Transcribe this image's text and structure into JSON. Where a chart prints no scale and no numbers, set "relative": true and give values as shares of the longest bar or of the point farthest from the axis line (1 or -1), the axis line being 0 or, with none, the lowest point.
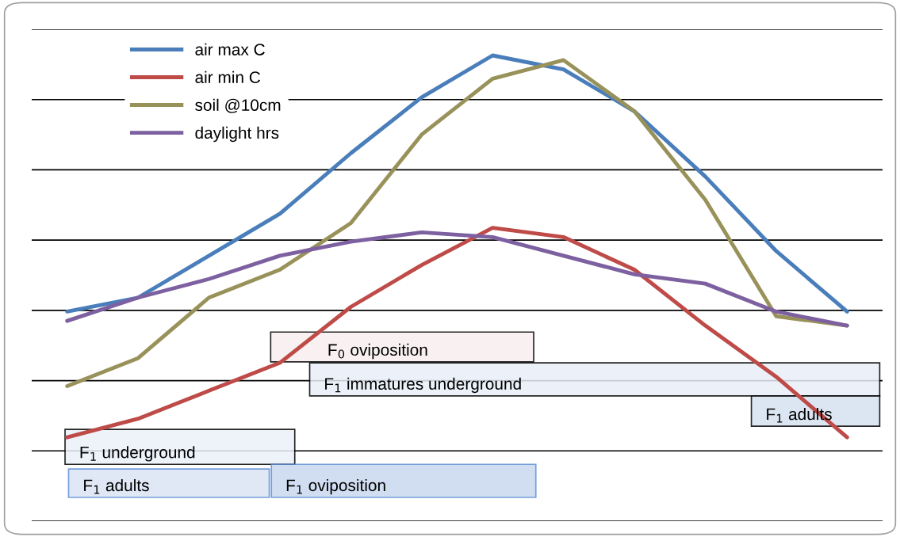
{
  "chart_data": {
    "type": "line",
    "relative": true,
    "categories": [
      null,
      null,
      null,
      null,
      null,
      null,
      null,
      null,
      null,
      null,
      null,
      null
    ],
    "series": [
      {
        "name": "air max C",
        "color": "#4a7ebb",
        "values": [
          0.45,
          0.48,
          0.57,
          0.66,
          0.79,
          0.91,
          1.0,
          0.97,
          0.88,
          0.74,
          0.58,
          0.45
        ]
      },
      {
        "name": "air min C",
        "color": "#be4b48",
        "values": [
          0.18,
          0.22,
          0.28,
          0.34,
          0.46,
          0.55,
          0.63,
          0.61,
          0.54,
          0.42,
          0.31,
          0.18
        ]
      },
      {
        "name": "soil @10cm",
        "color": "#98925a",
        "values": [
          0.29,
          0.35,
          0.48,
          0.54,
          0.64,
          0.83,
          0.95,
          0.99,
          0.88,
          0.69,
          0.44,
          0.42
        ]
      },
      {
        "name": "daylight hrs",
        "color": "#7d60a0",
        "values": [
          0.43,
          0.48,
          0.52,
          0.57,
          0.6,
          0.62,
          0.61,
          0.57,
          0.53,
          0.51,
          0.45,
          0.42
        ]
      }
    ],
    "annotations": [
      "F$_{0}$ oviposition",
      "F$_{1}$ immatures underground",
      "F$_{1}$ adults",
      "F$_{1}$ underground",
      "F$_{1}$ adults",
      "F$_{1}$ oviposition"
    ],
    "grid": "y",
    "legend": "top left",
    "marker": "none",
    "line_style": "solid"
  }
}
